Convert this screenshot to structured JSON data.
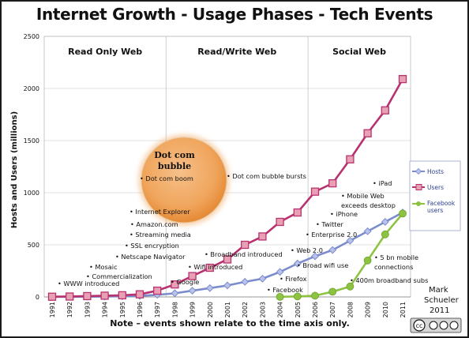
{
  "title": "Internet Growth - Usage Phases - Tech Events",
  "chart_data": {
    "type": "line",
    "title": "Internet Growth - Usage Phases - Tech Events",
    "ylabel": "Hosts and Users (millions)",
    "xlabel": "",
    "ylim": [
      0,
      2500
    ],
    "yticks": [
      "0",
      "500",
      "1000",
      "1500",
      "2000",
      "2500"
    ],
    "x": [
      "1991",
      "1992",
      "1993",
      "1994",
      "1995",
      "1996",
      "1997",
      "1998",
      "1999",
      "2000",
      "2001",
      "2002",
      "2003",
      "2004",
      "2005",
      "2006",
      "2007",
      "2008",
      "2009",
      "2010",
      "2011"
    ],
    "grid": "horizontal",
    "legend_position": "right",
    "series": [
      {
        "name": "Hosts",
        "color": "#7b8ccc",
        "marker": "diamond",
        "x": [
          "1991",
          "1992",
          "1993",
          "1994",
          "1995",
          "1996",
          "1997",
          "1998",
          "1999",
          "2000",
          "2001",
          "2002",
          "2003",
          "2004",
          "2005",
          "2006",
          "2007",
          "2008",
          "2009",
          "2010",
          "2011"
        ],
        "values": [
          1,
          1,
          2,
          4,
          6,
          10,
          20,
          35,
          60,
          85,
          110,
          145,
          175,
          240,
          320,
          390,
          450,
          540,
          630,
          720,
          810
        ]
      },
      {
        "name": "Users",
        "color": "#b8326f",
        "marker": "square",
        "x": [
          "1991",
          "1992",
          "1993",
          "1994",
          "1995",
          "1996",
          "1997",
          "1998",
          "1999",
          "2000",
          "2001",
          "2002",
          "2003",
          "2004",
          "2005",
          "2006",
          "2007",
          "2008",
          "2009",
          "2010",
          "2011"
        ],
        "values": [
          2,
          4,
          8,
          12,
          16,
          25,
          60,
          120,
          200,
          280,
          360,
          500,
          580,
          720,
          810,
          1010,
          1090,
          1320,
          1570,
          1790,
          2090
        ]
      },
      {
        "name": "Facebook users",
        "color": "#8dc341",
        "marker": "circle",
        "x": [
          "2004",
          "2005",
          "2006",
          "2007",
          "2008",
          "2009",
          "2010",
          "2011"
        ],
        "values": [
          1,
          5,
          12,
          50,
          100,
          350,
          600,
          800
        ]
      }
    ],
    "phases": [
      "Read Only Web",
      "Read/Write Web",
      "Social Web"
    ],
    "bubble": {
      "label_line1": "Dot com",
      "label_line2": "bubble"
    },
    "annotations": [
      "WWW introduced",
      "Mosaic",
      "Commercialization",
      "Netscape Navigator",
      "SSL encryption",
      "Streaming media",
      "Amazon.com",
      "Internet Explorer",
      "Dot com boom",
      "Google",
      "Wifi introduced",
      "Broadband introduced",
      "Dot com bubble bursts",
      "Facebook",
      "Firefox",
      "Broad wifi use",
      "Web 2.0",
      "Enterprise 2.0",
      "Twitter",
      "iPhone",
      "Mobile Web",
      "exceeds desktop",
      "iPad",
      "400m broadband subs",
      "5 bn mobile",
      "connections"
    ],
    "note": "Note – events shown relate to the time axis only.",
    "credit": [
      "Mark",
      "Schueler",
      "2011"
    ],
    "license_badge": "cc BY NC SA"
  }
}
